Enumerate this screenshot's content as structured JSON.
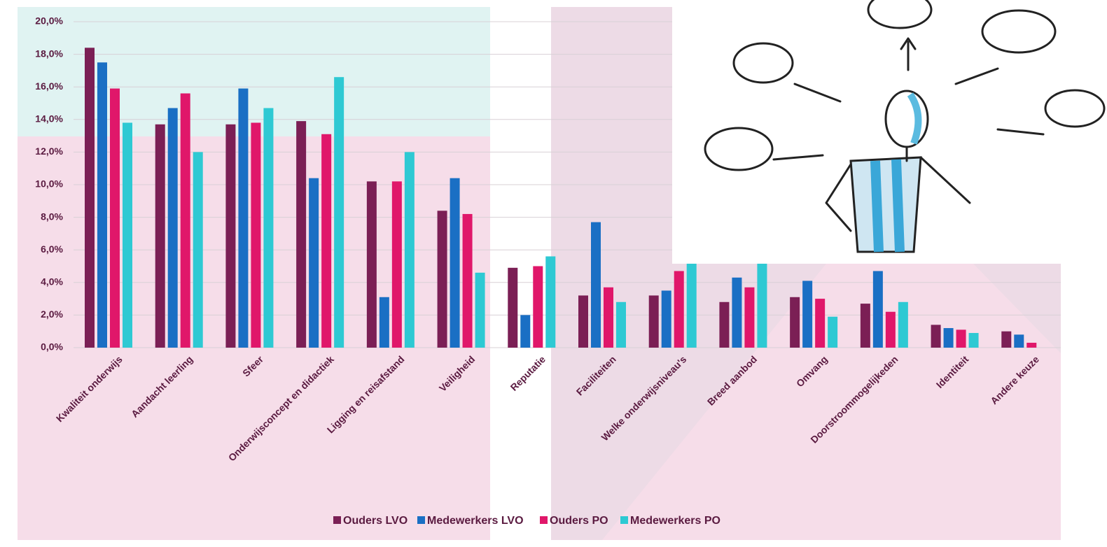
{
  "chart_data": {
    "type": "bar",
    "categories": [
      "Kwaliteit onderwijs",
      "Aandacht leerling",
      "Sfeer",
      "Onderwijsconcept en didactiek",
      "Ligging en reisafstand",
      "Veiligheid",
      "Reputatie",
      "Faciliteiten",
      "Welke onderwijsniveau's",
      "Breed aanbod",
      "Omvang",
      "Doorstroommogelijkeden",
      "Identiteit",
      "Andere keuze"
    ],
    "series": [
      {
        "name": "Ouders LVO",
        "color": "#7b1f55",
        "values": [
          18.4,
          13.7,
          13.7,
          13.9,
          10.2,
          8.4,
          4.9,
          3.2,
          3.2,
          2.8,
          3.1,
          2.7,
          1.4,
          1.0
        ]
      },
      {
        "name": "Medewerkers LVO",
        "color": "#1a6fc4",
        "values": [
          17.5,
          14.7,
          15.9,
          10.4,
          3.1,
          10.4,
          2.0,
          7.7,
          3.5,
          4.3,
          4.1,
          4.7,
          1.2,
          0.8
        ]
      },
      {
        "name": "Ouders PO",
        "color": "#e0176a",
        "values": [
          15.9,
          15.6,
          13.8,
          13.1,
          10.2,
          8.2,
          5.0,
          3.7,
          4.7,
          3.7,
          3.0,
          2.2,
          1.1,
          0.3
        ]
      },
      {
        "name": "Medewerkers PO",
        "color": "#2ec9d3",
        "values": [
          13.8,
          12.0,
          14.7,
          16.6,
          12.0,
          4.6,
          5.6,
          2.8,
          5.2,
          5.2,
          1.9,
          2.8,
          0.9,
          0
        ]
      }
    ],
    "ylim": [
      0,
      20
    ],
    "yticks": [
      {
        "value": 0,
        "label": "0,0%"
      },
      {
        "value": 2,
        "label": "2,0%"
      },
      {
        "value": 4,
        "label": "4,0%"
      },
      {
        "value": 6,
        "label": "6,0%"
      },
      {
        "value": 8,
        "label": "8,0%"
      },
      {
        "value": 10,
        "label": "10,0%"
      },
      {
        "value": 12,
        "label": "12,0%"
      },
      {
        "value": 14,
        "label": "14,0%"
      },
      {
        "value": 16,
        "label": "16,0%"
      },
      {
        "value": 18,
        "label": "18,0%"
      },
      {
        "value": 20,
        "label": "20,0%"
      }
    ],
    "grid": true
  }
}
